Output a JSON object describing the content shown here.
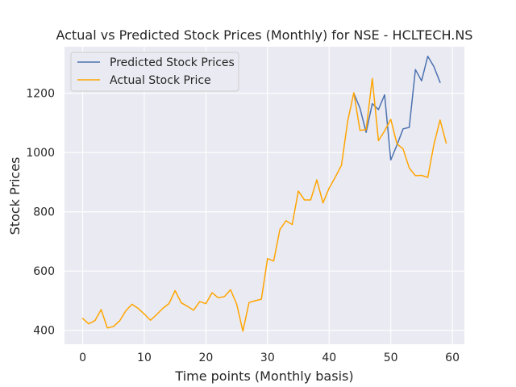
{
  "chart_data": {
    "type": "line",
    "title": "Actual vs Predicted Stock Prices (Monthly) for NSE - HCLTECH.NS",
    "xlabel": "Time points (Monthly basis)",
    "ylabel": "Stock Prices",
    "xlim": [
      -2.95,
      61.95
    ],
    "ylim": [
      353,
      1357
    ],
    "xticks": [
      0,
      10,
      20,
      30,
      40,
      50,
      60
    ],
    "yticks": [
      400,
      600,
      800,
      1000,
      1200
    ],
    "grid": true,
    "legend_position": "top-left",
    "series": [
      {
        "name": "Predicted Stock Prices",
        "color": "#4c72b0",
        "x": [
          44,
          45,
          46,
          47,
          48,
          49,
          50,
          51,
          52,
          53,
          54,
          55,
          56,
          57,
          58
        ],
        "values": [
          1200,
          1150,
          1068,
          1165,
          1145,
          1195,
          975,
          1025,
          1080,
          1085,
          1280,
          1242,
          1325,
          1290,
          1237
        ]
      },
      {
        "name": "Actual Stock Price",
        "color": "#ffa500",
        "x": [
          0,
          1,
          2,
          3,
          4,
          5,
          6,
          7,
          8,
          9,
          10,
          11,
          12,
          13,
          14,
          15,
          16,
          17,
          18,
          19,
          20,
          21,
          22,
          23,
          24,
          25,
          26,
          27,
          28,
          29,
          30,
          31,
          32,
          33,
          34,
          35,
          36,
          37,
          38,
          39,
          40,
          41,
          42,
          43,
          44,
          45,
          46,
          47,
          48,
          49,
          50,
          51,
          52,
          53,
          54,
          55,
          56,
          57,
          58,
          59
        ],
        "values": [
          440,
          422,
          433,
          470,
          408,
          413,
          432,
          466,
          488,
          474,
          455,
          434,
          453,
          474,
          490,
          534,
          493,
          481,
          468,
          497,
          490,
          527,
          510,
          514,
          537,
          488,
          397,
          494,
          500,
          505,
          642,
          634,
          740,
          770,
          757,
          870,
          840,
          840,
          908,
          830,
          880,
          917,
          957,
          1105,
          1202,
          1075,
          1077,
          1250,
          1040,
          1073,
          1112,
          1030,
          1012,
          948,
          922,
          923,
          916,
          1027,
          1110,
          1032
        ]
      }
    ]
  }
}
